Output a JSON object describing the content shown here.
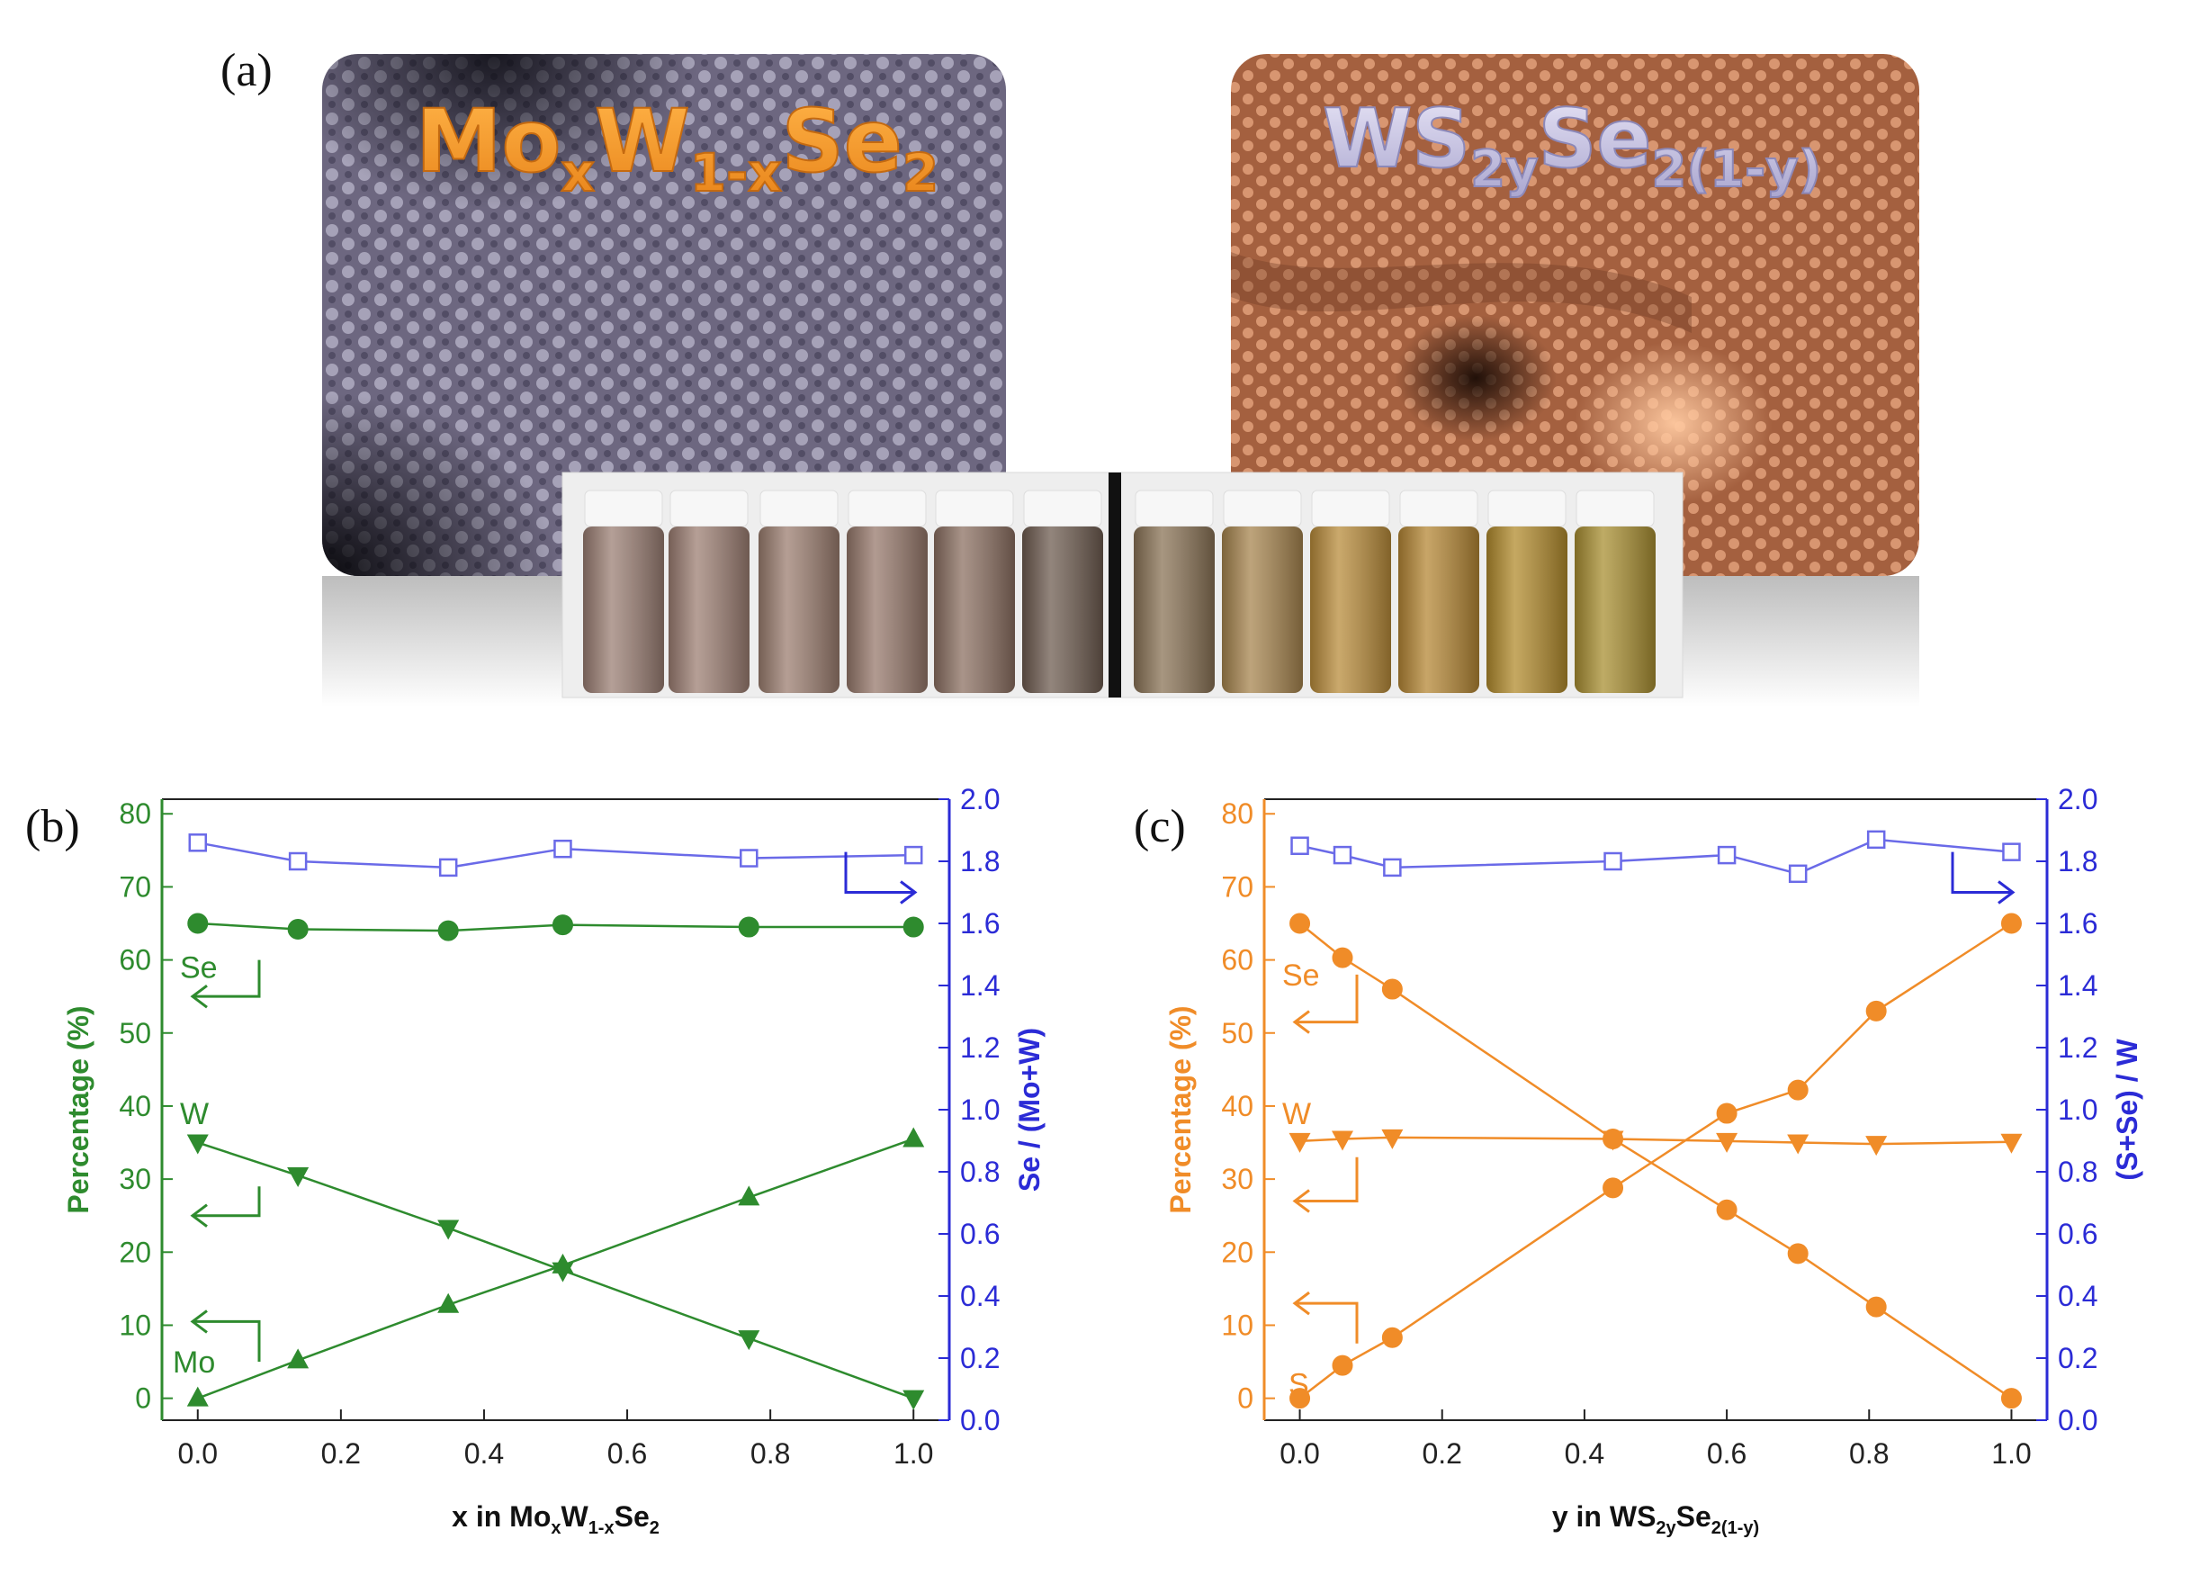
{
  "panels": {
    "a": "(a)",
    "b": "(b)",
    "c": "(c)"
  },
  "images": {
    "left_title": {
      "main1": "Mo",
      "sub1": "x",
      "main2": "W",
      "sub2": "1-x",
      "main3": "Se",
      "sub3": "2"
    },
    "right_title": {
      "main1": "WS",
      "sub1": "2y",
      "main2": "Se",
      "sub2": "2(1-y)"
    },
    "left_tint": "#6b6478",
    "right_tint": "#a8603e"
  },
  "colors": {
    "green": "#2e8b2e",
    "orange": "#f08c28",
    "blue_axis": "#2b2bd6",
    "blue_line": "#6a6ae8"
  },
  "chart_data": [
    {
      "type": "line",
      "panel": "b",
      "xlabel": {
        "pre": "x in Mo",
        "s1": "x",
        "m2": "W",
        "s2": "1-x",
        "m3": "Se",
        "s3": "2"
      },
      "ylabel": "Percentage (%)",
      "y2label": "Se / (Mo+W)",
      "xlim": [
        -0.05,
        1.05
      ],
      "ylim": [
        -3,
        82
      ],
      "y2lim": [
        0,
        2.0
      ],
      "xticks": [
        "0.0",
        "0.2",
        "0.4",
        "0.6",
        "0.8",
        "1.0"
      ],
      "yticks": [
        "0",
        "10",
        "20",
        "30",
        "40",
        "50",
        "60",
        "70",
        "80"
      ],
      "y2ticks": [
        "0.0",
        "0.2",
        "0.4",
        "0.6",
        "0.8",
        "1.0",
        "1.2",
        "1.4",
        "1.6",
        "1.8",
        "2.0"
      ],
      "series": [
        {
          "name": "Se",
          "marker": "circle",
          "axis": "left",
          "x": [
            0.0,
            0.14,
            0.35,
            0.51,
            0.77,
            1.0
          ],
          "values": [
            65,
            64.2,
            64,
            64.8,
            64.5,
            64.5
          ]
        },
        {
          "name": "W",
          "marker": "triangle-down",
          "axis": "left",
          "x": [
            0.0,
            0.14,
            0.35,
            0.51,
            0.77,
            1.0
          ],
          "values": [
            35,
            30.5,
            23.3,
            17.5,
            8.2,
            0
          ]
        },
        {
          "name": "Mo",
          "marker": "triangle-up",
          "axis": "left",
          "x": [
            0.0,
            0.14,
            0.35,
            0.51,
            0.77,
            1.0
          ],
          "values": [
            0,
            5.2,
            12.8,
            18.2,
            27.5,
            35.5
          ]
        },
        {
          "name": "Se/(Mo+W)",
          "marker": "square-open",
          "axis": "right",
          "x": [
            0.0,
            0.14,
            0.35,
            0.51,
            0.77,
            1.0
          ],
          "values": [
            1.86,
            1.8,
            1.78,
            1.84,
            1.81,
            1.82
          ]
        }
      ]
    },
    {
      "type": "line",
      "panel": "c",
      "xlabel": {
        "pre": "y in WS",
        "s1": "2y",
        "m2": "Se",
        "s2": "2(1-y)"
      },
      "ylabel": "Percentage (%)",
      "y2label": "(S+Se) / W",
      "xlim": [
        -0.05,
        1.05
      ],
      "ylim": [
        -3,
        82
      ],
      "y2lim": [
        0,
        2.0
      ],
      "xticks": [
        "0.0",
        "0.2",
        "0.4",
        "0.6",
        "0.8",
        "1.0"
      ],
      "yticks": [
        "0",
        "10",
        "20",
        "30",
        "40",
        "50",
        "60",
        "70",
        "80"
      ],
      "y2ticks": [
        "0.0",
        "0.2",
        "0.4",
        "0.6",
        "0.8",
        "1.0",
        "1.2",
        "1.4",
        "1.6",
        "1.8",
        "2.0"
      ],
      "series": [
        {
          "name": "Se",
          "marker": "circle",
          "axis": "left",
          "x": [
            0.0,
            0.06,
            0.13,
            0.44,
            0.6,
            0.7,
            0.81,
            1.0
          ],
          "values": [
            65,
            60.3,
            56,
            35.5,
            25.8,
            19.8,
            12.5,
            0
          ]
        },
        {
          "name": "S",
          "marker": "circle",
          "axis": "left",
          "x": [
            0.0,
            0.06,
            0.13,
            0.44,
            0.6,
            0.7,
            0.81,
            1.0
          ],
          "values": [
            0,
            4.5,
            8.3,
            28.8,
            39,
            42.2,
            53,
            65
          ]
        },
        {
          "name": "W",
          "marker": "triangle-down",
          "axis": "left",
          "x": [
            0.0,
            0.06,
            0.13,
            0.44,
            0.6,
            0.7,
            0.81,
            1.0
          ],
          "values": [
            35.2,
            35.5,
            35.7,
            35.5,
            35.2,
            35,
            34.8,
            35.1
          ]
        },
        {
          "name": "(S+Se)/W",
          "marker": "square-open",
          "axis": "right",
          "x": [
            0.0,
            0.06,
            0.13,
            0.44,
            0.6,
            0.7,
            0.81,
            1.0
          ],
          "values": [
            1.85,
            1.82,
            1.78,
            1.8,
            1.82,
            1.76,
            1.87,
            1.83
          ]
        }
      ]
    }
  ],
  "annotations": {
    "b": {
      "Se": "Se",
      "W": "W",
      "Mo": "Mo"
    },
    "c": {
      "Se": "Se",
      "W": "W",
      "S": "S"
    }
  }
}
